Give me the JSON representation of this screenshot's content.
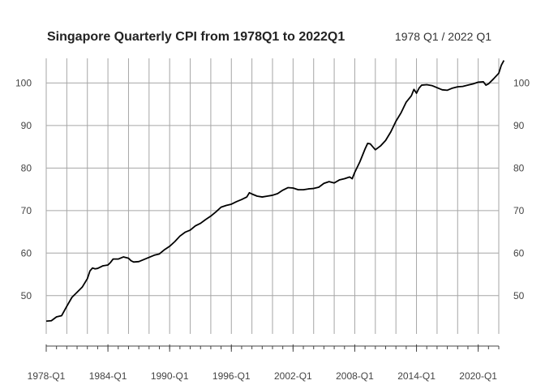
{
  "chart_data": {
    "type": "line",
    "title": "Singapore Quarterly CPI from 1978Q1 to 2022Q1",
    "subtitle": "1978 Q1 / 2022 Q1",
    "xlabel": "",
    "ylabel": "",
    "x_range": [
      1978.0,
      2022.0
    ],
    "ylim": [
      41.0,
      105.8
    ],
    "grid": true,
    "x_ticks": [
      {
        "x": 1978.0,
        "label": "1978-Q1"
      },
      {
        "x": 1984.0,
        "label": "1984-Q1"
      },
      {
        "x": 1990.0,
        "label": "1990-Q1"
      },
      {
        "x": 1996.0,
        "label": "1996-Q1"
      },
      {
        "x": 2002.0,
        "label": "2002-Q1"
      },
      {
        "x": 2008.0,
        "label": "2008-Q1"
      },
      {
        "x": 2014.0,
        "label": "2014-Q1"
      },
      {
        "x": 2020.0,
        "label": "2020-Q1"
      }
    ],
    "y_ticks": [
      50,
      60,
      70,
      80,
      90,
      100
    ],
    "series": [
      {
        "color": "#000000",
        "points": [
          [
            1978.0,
            44.0
          ],
          [
            1978.5,
            44.1
          ],
          [
            1979.0,
            45.0
          ],
          [
            1979.5,
            45.3
          ],
          [
            1980.0,
            47.5
          ],
          [
            1980.5,
            49.6
          ],
          [
            1981.0,
            50.8
          ],
          [
            1981.5,
            52.0
          ],
          [
            1982.0,
            54.0
          ],
          [
            1982.25,
            55.8
          ],
          [
            1982.5,
            56.5
          ],
          [
            1982.75,
            56.3
          ],
          [
            1983.0,
            56.4
          ],
          [
            1983.5,
            57.0
          ],
          [
            1984.0,
            57.2
          ],
          [
            1984.25,
            57.8
          ],
          [
            1984.5,
            58.6
          ],
          [
            1985.0,
            58.6
          ],
          [
            1985.5,
            59.1
          ],
          [
            1986.0,
            58.8
          ],
          [
            1986.25,
            58.2
          ],
          [
            1986.5,
            57.9
          ],
          [
            1987.0,
            58.0
          ],
          [
            1987.5,
            58.5
          ],
          [
            1988.0,
            59.0
          ],
          [
            1988.5,
            59.5
          ],
          [
            1989.0,
            59.8
          ],
          [
            1989.5,
            60.8
          ],
          [
            1990.0,
            61.6
          ],
          [
            1990.5,
            62.7
          ],
          [
            1991.0,
            64.0
          ],
          [
            1991.5,
            64.9
          ],
          [
            1992.0,
            65.4
          ],
          [
            1992.5,
            66.4
          ],
          [
            1993.0,
            67.0
          ],
          [
            1993.5,
            67.9
          ],
          [
            1994.0,
            68.7
          ],
          [
            1994.5,
            69.7
          ],
          [
            1995.0,
            70.8
          ],
          [
            1995.5,
            71.2
          ],
          [
            1996.0,
            71.5
          ],
          [
            1996.5,
            72.1
          ],
          [
            1997.0,
            72.6
          ],
          [
            1997.5,
            73.2
          ],
          [
            1997.75,
            74.2
          ],
          [
            1998.0,
            73.9
          ],
          [
            1998.5,
            73.4
          ],
          [
            1999.0,
            73.2
          ],
          [
            1999.5,
            73.4
          ],
          [
            2000.0,
            73.6
          ],
          [
            2000.5,
            74.0
          ],
          [
            2001.0,
            74.8
          ],
          [
            2001.5,
            75.4
          ],
          [
            2002.0,
            75.3
          ],
          [
            2002.5,
            74.9
          ],
          [
            2003.0,
            74.9
          ],
          [
            2003.5,
            75.1
          ],
          [
            2004.0,
            75.2
          ],
          [
            2004.5,
            75.5
          ],
          [
            2005.0,
            76.4
          ],
          [
            2005.5,
            76.8
          ],
          [
            2006.0,
            76.5
          ],
          [
            2006.5,
            77.2
          ],
          [
            2007.0,
            77.5
          ],
          [
            2007.5,
            77.9
          ],
          [
            2007.75,
            77.5
          ],
          [
            2008.0,
            79.0
          ],
          [
            2008.5,
            81.5
          ],
          [
            2009.0,
            84.5
          ],
          [
            2009.25,
            85.8
          ],
          [
            2009.5,
            85.7
          ],
          [
            2010.0,
            84.3
          ],
          [
            2010.5,
            85.2
          ],
          [
            2011.0,
            86.5
          ],
          [
            2011.5,
            88.5
          ],
          [
            2012.0,
            91.0
          ],
          [
            2012.5,
            93.0
          ],
          [
            2013.0,
            95.5
          ],
          [
            2013.5,
            97.0
          ],
          [
            2013.75,
            98.5
          ],
          [
            2014.0,
            97.6
          ],
          [
            2014.25,
            98.8
          ],
          [
            2014.5,
            99.5
          ],
          [
            2015.0,
            99.6
          ],
          [
            2015.5,
            99.4
          ],
          [
            2016.0,
            98.9
          ],
          [
            2016.5,
            98.4
          ],
          [
            2017.0,
            98.3
          ],
          [
            2017.5,
            98.8
          ],
          [
            2018.0,
            99.1
          ],
          [
            2018.5,
            99.2
          ],
          [
            2019.0,
            99.5
          ],
          [
            2019.5,
            99.8
          ],
          [
            2020.0,
            100.2
          ],
          [
            2020.5,
            100.3
          ],
          [
            2020.75,
            99.5
          ],
          [
            2021.0,
            99.8
          ],
          [
            2021.5,
            101.0
          ],
          [
            2022.0,
            102.3
          ],
          [
            2022.25,
            104.2
          ],
          [
            2022.5,
            105.3
          ]
        ]
      }
    ]
  }
}
